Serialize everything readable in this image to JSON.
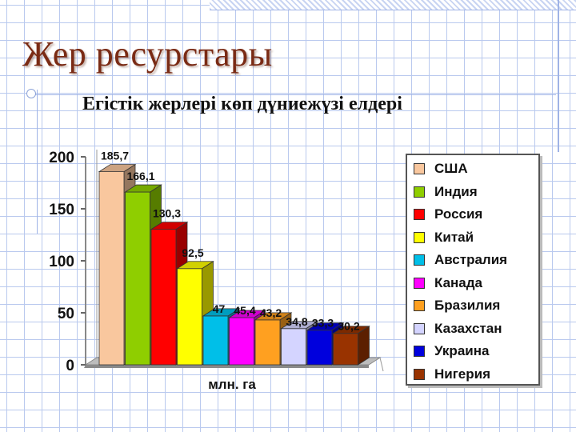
{
  "header": {
    "title": "Жер ресурстары",
    "subtitle": "Егістік жерлері көп дүниежүзі елдері"
  },
  "chart_data": {
    "type": "bar",
    "title": "",
    "xlabel": "млн. га",
    "ylabel": "",
    "ylim": [
      0,
      200
    ],
    "yticks": [
      0,
      50,
      100,
      150,
      200
    ],
    "grid": false,
    "three_d": true,
    "legend_position": "right",
    "categories": [
      "США",
      "Индия",
      "Россия",
      "Китай",
      "Австралия",
      "Канада",
      "Бразилия",
      "Казахстан",
      "Украина",
      "Нигерия"
    ],
    "values": [
      185.7,
      166.1,
      130.3,
      92.5,
      47,
      45.4,
      43.2,
      34.8,
      33.3,
      30.2
    ],
    "value_labels": [
      "185,7",
      "166,1",
      "130,3",
      "92,5",
      "47",
      "45,4",
      "43,2",
      "34,8",
      "33,3",
      "30,2"
    ],
    "colors": [
      "#f9c79e",
      "#8fce00",
      "#ff0000",
      "#ffff00",
      "#00bfe8",
      "#ff00ff",
      "#ffa020",
      "#d4d4ff",
      "#0000dd",
      "#993300"
    ]
  }
}
